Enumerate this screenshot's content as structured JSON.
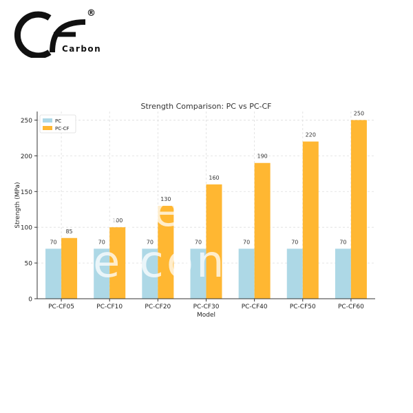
{
  "logo": {
    "text": "Carbon",
    "registered": "®",
    "initials": "CF"
  },
  "watermark": "ope e.con",
  "colors": {
    "pc": "#add8e6",
    "pc_cf": "#ffb732",
    "grid": "#dddddd",
    "axis": "#333333"
  },
  "chart_data": {
    "type": "bar",
    "title": "Strength Comparison: PC vs PC-CF",
    "xlabel": "Model",
    "ylabel": "Strength (MPa)",
    "categories": [
      "PC-CF05",
      "PC-CF10",
      "PC-CF20",
      "PC-CF30",
      "PC-CF40",
      "PC-CF50",
      "PC-CF60"
    ],
    "series": [
      {
        "name": "PC",
        "values": [
          70,
          70,
          70,
          70,
          70,
          70,
          70
        ],
        "color": "#add8e6"
      },
      {
        "name": "PC-CF",
        "values": [
          85,
          100,
          130,
          160,
          190,
          220,
          250
        ],
        "color": "#ffb732"
      }
    ],
    "ylim": [
      0,
      262
    ],
    "yticks": [
      0,
      50,
      100,
      150,
      200,
      250
    ],
    "grid": true,
    "legend_position": "top-left"
  }
}
